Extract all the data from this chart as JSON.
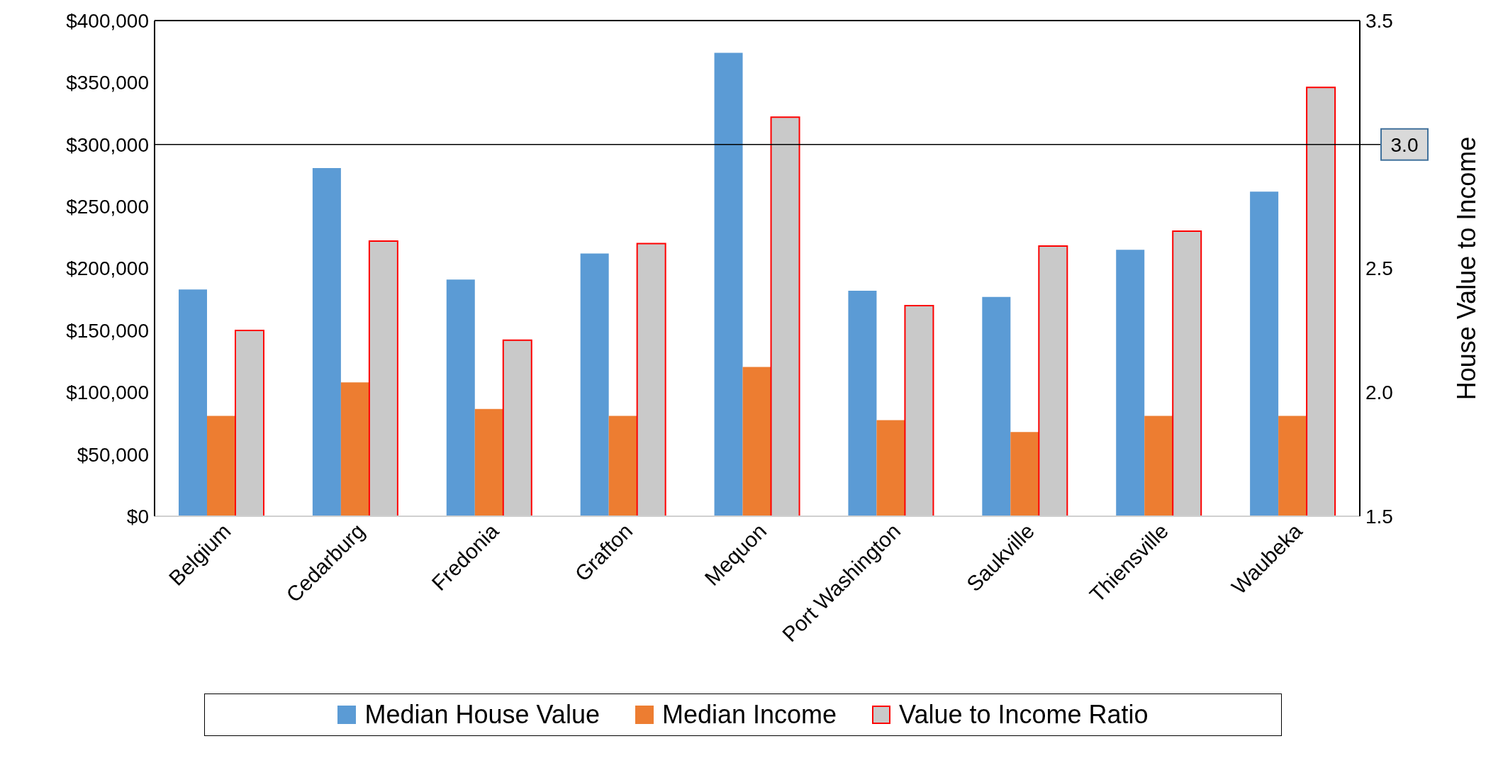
{
  "chart_data": {
    "type": "bar",
    "categories": [
      "Belgium",
      "Cedarburg",
      "Fredonia",
      "Grafton",
      "Mequon",
      "Port Washington",
      "Saukville",
      "Thiensville",
      "Waubeka"
    ],
    "series": [
      {
        "name": "Median House Value",
        "color": "#5b9bd5",
        "values": [
          183000,
          281000,
          191000,
          212000,
          374000,
          182000,
          177000,
          215000,
          262000
        ]
      },
      {
        "name": "Median Income",
        "color": "#ed7d31",
        "values": [
          81000,
          108000,
          86500,
          81000,
          120500,
          77500,
          68000,
          81000,
          81000
        ]
      },
      {
        "name": "Value to Income Ratio",
        "color": "#c9c9c9",
        "axis": "y2",
        "values": [
          2.25,
          2.61,
          2.21,
          2.6,
          3.11,
          2.35,
          2.59,
          2.65,
          3.23
        ]
      }
    ],
    "ylim": [
      0,
      400000
    ],
    "yticks": [
      {
        "value": 0,
        "label": "$0"
      },
      {
        "value": 50000,
        "label": "$50,000"
      },
      {
        "value": 100000,
        "label": "$100,000"
      },
      {
        "value": 150000,
        "label": "$150,000"
      },
      {
        "value": 200000,
        "label": "$200,000"
      },
      {
        "value": 250000,
        "label": "$250,000"
      },
      {
        "value": 300000,
        "label": "$300,000"
      },
      {
        "value": 350000,
        "label": "$350,000"
      },
      {
        "value": 400000,
        "label": "$400,000"
      }
    ],
    "y2lim": [
      1.5,
      3.5
    ],
    "y2ticks": [
      {
        "value": 1.5,
        "label": "1.5"
      },
      {
        "value": 2,
        "label": "2.0"
      },
      {
        "value": 2.5,
        "label": "2.5"
      },
      {
        "value": 3.5,
        "label": "3.5"
      }
    ],
    "y2label": "House Value to Income",
    "ref_lines": [
      {
        "axis": "y2",
        "value": 3,
        "label": "3.0",
        "color": "#000000"
      }
    ],
    "legend": "bottom"
  }
}
